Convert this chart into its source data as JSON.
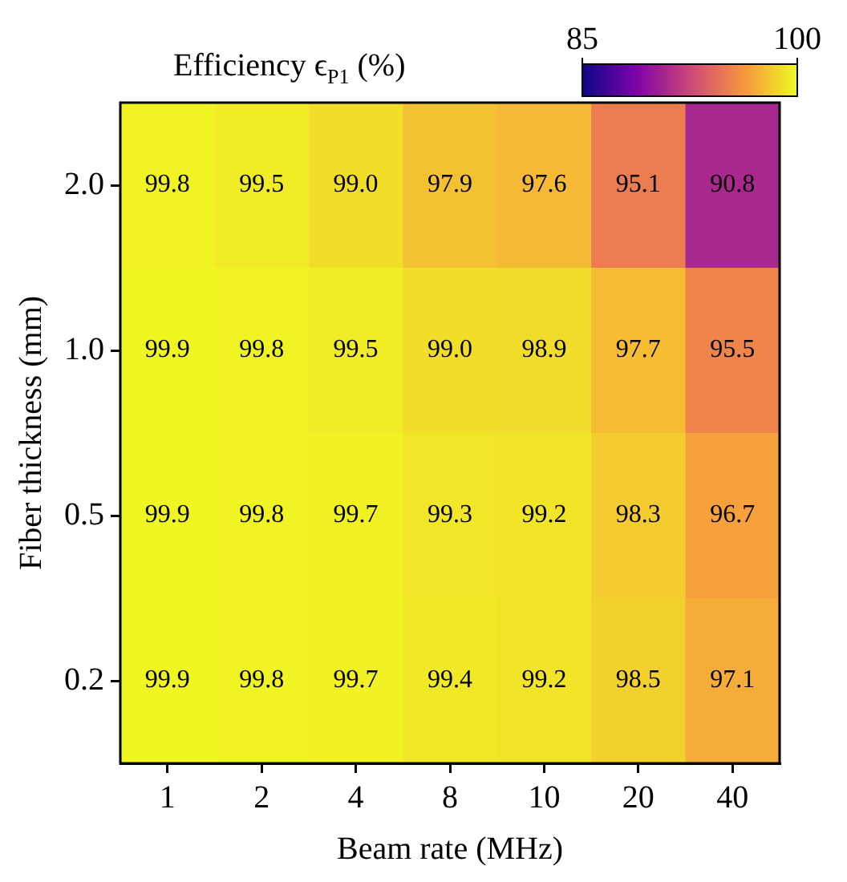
{
  "chart_data": {
    "type": "heatmap",
    "xlabel": "Beam rate (MHz)",
    "ylabel": "Fiber thickness (mm)",
    "clabel": "Efficiency ϵ$_{P1}$ (%)",
    "categories": [
      "1",
      "2",
      "4",
      "8",
      "10",
      "20",
      "40"
    ],
    "y_categories": [
      "2.0",
      "1.0",
      "0.5",
      "0.2"
    ],
    "cells": [
      [
        99.8,
        99.5,
        99.0,
        97.9,
        97.6,
        95.1,
        90.8
      ],
      [
        99.9,
        99.8,
        99.5,
        99.0,
        98.9,
        97.7,
        95.5
      ],
      [
        99.9,
        99.8,
        99.7,
        99.3,
        99.2,
        98.3,
        96.7
      ],
      [
        99.9,
        99.8,
        99.7,
        99.4,
        99.2,
        98.5,
        97.1
      ]
    ],
    "cell_labels": [
      [
        "99.8",
        "99.5",
        "99.0",
        "97.9",
        "97.6",
        "95.1",
        "90.8"
      ],
      [
        "99.9",
        "99.8",
        "99.5",
        "99.0",
        "98.9",
        "97.7",
        "95.5"
      ],
      [
        "99.9",
        "99.8",
        "99.7",
        "99.3",
        "99.2",
        "98.3",
        "96.7"
      ],
      [
        "99.9",
        "99.8",
        "99.7",
        "99.4",
        "99.2",
        "98.5",
        "97.1"
      ]
    ],
    "clim": [
      85,
      100
    ],
    "cticks": [
      85,
      100
    ]
  }
}
